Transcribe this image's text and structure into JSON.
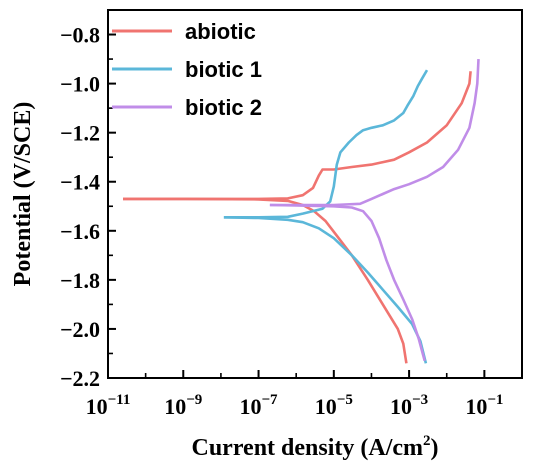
{
  "chart_data": {
    "type": "line",
    "xlabel": "Current density (A/cm",
    "xlabel_sup": "2",
    "xlabel_end": ")",
    "ylabel": "Potential (V/SCE)",
    "x_scale": "log",
    "xlim": [
      1e-11,
      1
    ],
    "ylim": [
      -2.2,
      -0.7
    ],
    "x_ticks": [
      {
        "value": 1e-11,
        "base": "10",
        "exp": "−11"
      },
      {
        "value": 1e-09,
        "base": "10",
        "exp": "−9"
      },
      {
        "value": 1e-07,
        "base": "10",
        "exp": "−7"
      },
      {
        "value": 1e-05,
        "base": "10",
        "exp": "−5"
      },
      {
        "value": 0.001,
        "base": "10",
        "exp": "−3"
      },
      {
        "value": 0.1,
        "base": "10",
        "exp": "−1"
      }
    ],
    "y_ticks": [
      {
        "value": -0.8,
        "label": "−0.8"
      },
      {
        "value": -1.0,
        "label": "−1.0"
      },
      {
        "value": -1.2,
        "label": "−1.2"
      },
      {
        "value": -1.4,
        "label": "−1.4"
      },
      {
        "value": -1.6,
        "label": "−1.6"
      },
      {
        "value": -1.8,
        "label": "−1.8"
      },
      {
        "value": -2.0,
        "label": "−2.0"
      },
      {
        "value": -2.2,
        "label": "−2.2"
      }
    ],
    "grid": false,
    "legend_position": "top-left",
    "series": [
      {
        "name": "abiotic",
        "color": "#f07470",
        "points": [
          [
            2.5e-11,
            -1.47
          ],
          [
            1e-09,
            -1.47
          ],
          [
            1e-07,
            -1.47
          ],
          [
            6e-07,
            -1.468
          ],
          [
            1.5e-06,
            -1.455
          ],
          [
            2.8e-06,
            -1.425
          ],
          [
            4e-06,
            -1.375
          ],
          [
            5e-06,
            -1.35
          ],
          [
            1e-05,
            -1.35
          ],
          [
            3e-05,
            -1.34
          ],
          [
            0.0001,
            -1.33
          ],
          [
            0.0004,
            -1.31
          ],
          [
            0.001,
            -1.28
          ],
          [
            0.003,
            -1.24
          ],
          [
            0.01,
            -1.17
          ],
          [
            0.025,
            -1.08
          ],
          [
            0.04,
            -1.0
          ],
          [
            0.043,
            -0.95
          ]
        ],
        "cathodic": [
          [
            2.5e-11,
            -1.47
          ],
          [
            1e-09,
            -1.47
          ],
          [
            1e-07,
            -1.472
          ],
          [
            6e-07,
            -1.478
          ],
          [
            1.5e-06,
            -1.495
          ],
          [
            3e-06,
            -1.52
          ],
          [
            6e-06,
            -1.56
          ],
          [
            1.2e-05,
            -1.62
          ],
          [
            3e-05,
            -1.7
          ],
          [
            8e-05,
            -1.8
          ],
          [
            0.0002,
            -1.9
          ],
          [
            0.0005,
            -2.0
          ],
          [
            0.0007,
            -2.06
          ],
          [
            0.00085,
            -2.14
          ]
        ]
      },
      {
        "name": "biotic 1",
        "color": "#5bb7d9",
        "points": [
          [
            1.2e-08,
            -1.545
          ],
          [
            1e-07,
            -1.545
          ],
          [
            6e-07,
            -1.543
          ],
          [
            1.5e-06,
            -1.53
          ],
          [
            5e-06,
            -1.51
          ],
          [
            8e-06,
            -1.48
          ],
          [
            1e-05,
            -1.42
          ],
          [
            1.2e-05,
            -1.33
          ],
          [
            1.5e-05,
            -1.28
          ],
          [
            2.5e-05,
            -1.24
          ],
          [
            4e-05,
            -1.21
          ],
          [
            6e-05,
            -1.19
          ],
          [
            0.0001,
            -1.18
          ],
          [
            0.0002,
            -1.17
          ],
          [
            0.0004,
            -1.15
          ],
          [
            0.0007,
            -1.12
          ],
          [
            0.0009,
            -1.09
          ],
          [
            0.0013,
            -1.05
          ],
          [
            0.0017,
            -1.01
          ],
          [
            0.0022,
            -0.98
          ],
          [
            0.003,
            -0.945
          ]
        ],
        "cathodic": [
          [
            1.2e-08,
            -1.545
          ],
          [
            1e-07,
            -1.548
          ],
          [
            6e-07,
            -1.555
          ],
          [
            1.5e-06,
            -1.565
          ],
          [
            4e-06,
            -1.59
          ],
          [
            1e-05,
            -1.63
          ],
          [
            3e-05,
            -1.7
          ],
          [
            8e-05,
            -1.77
          ],
          [
            0.0002,
            -1.84
          ],
          [
            0.0005,
            -1.91
          ],
          [
            0.0012,
            -1.98
          ],
          [
            0.002,
            -2.05
          ],
          [
            0.0028,
            -2.14
          ]
        ]
      },
      {
        "name": "biotic 2",
        "color": "#c08de8",
        "points": [
          [
            2e-07,
            -1.495
          ],
          [
            1e-06,
            -1.495
          ],
          [
            1e-05,
            -1.495
          ],
          [
            5e-05,
            -1.49
          ],
          [
            0.0001,
            -1.47
          ],
          [
            0.0002,
            -1.45
          ],
          [
            0.0004,
            -1.43
          ],
          [
            0.001,
            -1.41
          ],
          [
            0.003,
            -1.38
          ],
          [
            0.008,
            -1.34
          ],
          [
            0.02,
            -1.27
          ],
          [
            0.04,
            -1.18
          ],
          [
            0.055,
            -1.08
          ],
          [
            0.065,
            -1.0
          ],
          [
            0.07,
            -0.9
          ]
        ],
        "cathodic": [
          [
            2e-07,
            -1.495
          ],
          [
            1e-06,
            -1.497
          ],
          [
            1e-05,
            -1.5
          ],
          [
            3e-05,
            -1.505
          ],
          [
            6e-05,
            -1.52
          ],
          [
            0.0001,
            -1.56
          ],
          [
            0.00016,
            -1.63
          ],
          [
            0.00025,
            -1.72
          ],
          [
            0.0004,
            -1.8
          ],
          [
            0.0007,
            -1.88
          ],
          [
            0.0012,
            -1.96
          ],
          [
            0.0018,
            -2.04
          ],
          [
            0.0023,
            -2.1
          ],
          [
            0.0026,
            -2.13
          ]
        ]
      }
    ]
  }
}
